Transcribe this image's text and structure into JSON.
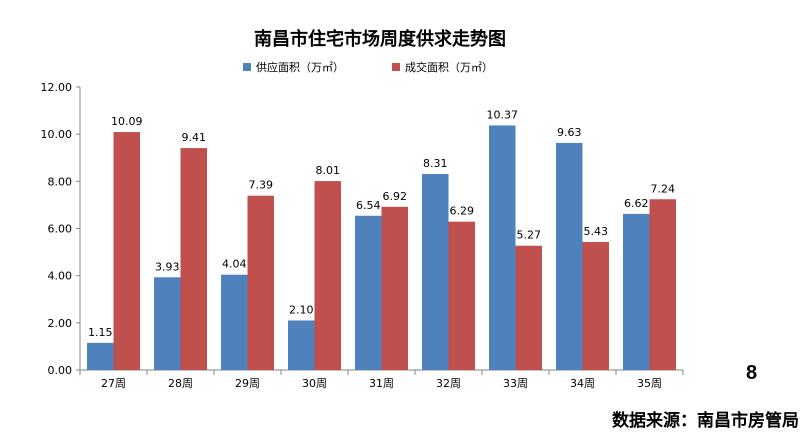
{
  "chart_data": {
    "type": "bar",
    "title": "南昌市住宅市场周度供求走势图",
    "categories": [
      "27周",
      "28周",
      "29周",
      "30周",
      "31周",
      "32周",
      "33周",
      "34周",
      "35周"
    ],
    "series": [
      {
        "name": "供应面积（万㎡）",
        "color": "#4F81BD",
        "values": [
          1.15,
          3.93,
          4.04,
          2.1,
          6.54,
          8.31,
          10.37,
          9.63,
          6.62
        ],
        "labels": [
          "1.15",
          "3.93",
          "4.04",
          "2.10",
          "6.54",
          "8.31",
          "10.37",
          "9.63",
          "6.62"
        ]
      },
      {
        "name": "成交面积（万㎡）",
        "color": "#C0504D",
        "values": [
          10.09,
          9.41,
          7.39,
          8.01,
          6.92,
          6.29,
          5.27,
          5.43,
          7.24
        ],
        "labels": [
          "10.09",
          "9.41",
          "7.39",
          "8.01",
          "6.92",
          "6.29",
          "5.27",
          "5.43",
          "7.24"
        ]
      }
    ],
    "ylim": [
      0,
      12
    ],
    "yticks": [
      "0.00",
      "2.00",
      "4.00",
      "6.00",
      "8.00",
      "10.00",
      "12.00"
    ],
    "grid": false,
    "legend": "top"
  },
  "page_number": "8",
  "source": "数据来源：南昌市房管局"
}
